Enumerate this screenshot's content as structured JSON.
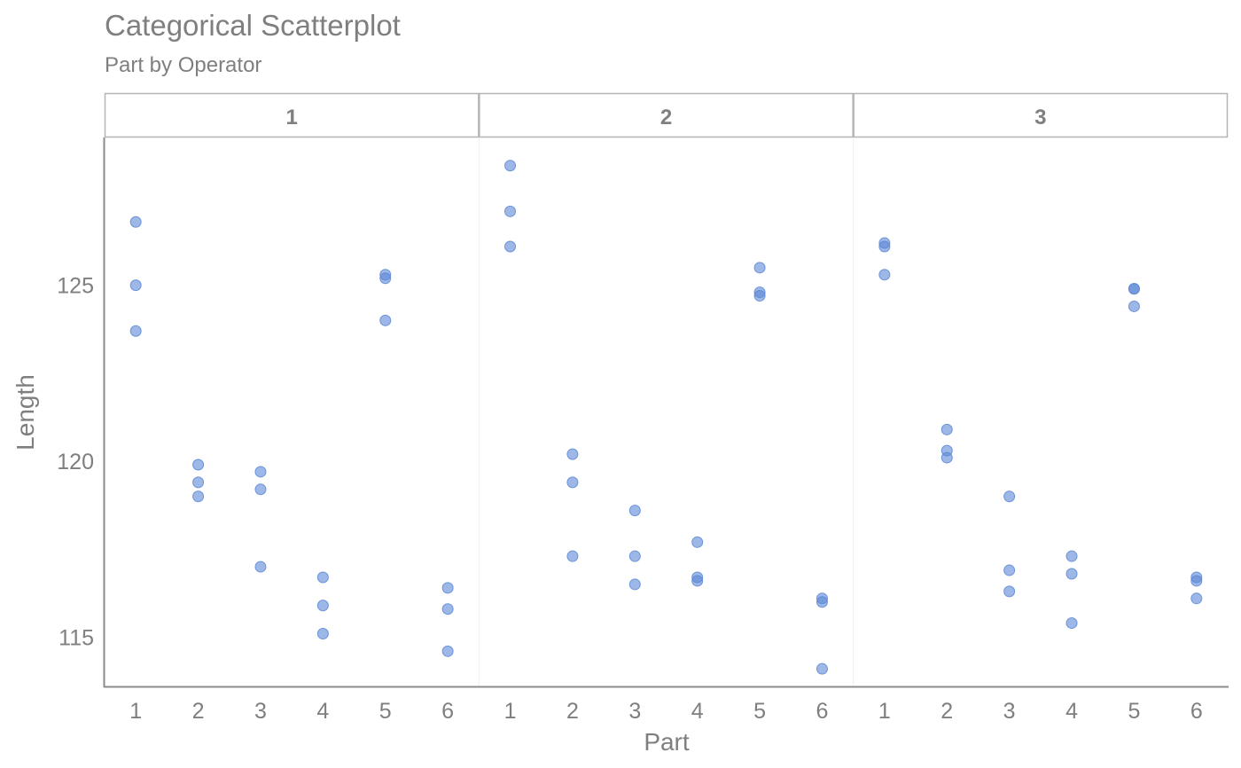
{
  "chart_data": {
    "type": "scatter",
    "title": "Categorical Scatterplot",
    "subtitle": "Part by Operator",
    "xlabel": "Part",
    "ylabel": "Length",
    "ylim": [
      113.6,
      129.2
    ],
    "yticks": [
      115,
      120,
      125
    ],
    "categories": [
      "1",
      "2",
      "3",
      "4",
      "5",
      "6"
    ],
    "grid": false,
    "point_color": "#5b87d6",
    "panels": [
      {
        "label": "1",
        "points": [
          {
            "x": "1",
            "y": 126.8
          },
          {
            "x": "1",
            "y": 125.0
          },
          {
            "x": "1",
            "y": 123.7
          },
          {
            "x": "2",
            "y": 119.9
          },
          {
            "x": "2",
            "y": 119.4
          },
          {
            "x": "2",
            "y": 119.0
          },
          {
            "x": "3",
            "y": 119.7
          },
          {
            "x": "3",
            "y": 119.2
          },
          {
            "x": "3",
            "y": 117.0
          },
          {
            "x": "4",
            "y": 116.7
          },
          {
            "x": "4",
            "y": 115.9
          },
          {
            "x": "4",
            "y": 115.1
          },
          {
            "x": "5",
            "y": 125.3
          },
          {
            "x": "5",
            "y": 125.2
          },
          {
            "x": "5",
            "y": 124.0
          },
          {
            "x": "6",
            "y": 116.4
          },
          {
            "x": "6",
            "y": 115.8
          },
          {
            "x": "6",
            "y": 114.6
          }
        ]
      },
      {
        "label": "2",
        "points": [
          {
            "x": "1",
            "y": 128.4
          },
          {
            "x": "1",
            "y": 127.1
          },
          {
            "x": "1",
            "y": 126.1
          },
          {
            "x": "2",
            "y": 120.2
          },
          {
            "x": "2",
            "y": 119.4
          },
          {
            "x": "2",
            "y": 117.3
          },
          {
            "x": "3",
            "y": 118.6
          },
          {
            "x": "3",
            "y": 117.3
          },
          {
            "x": "3",
            "y": 116.5
          },
          {
            "x": "4",
            "y": 117.7
          },
          {
            "x": "4",
            "y": 116.7
          },
          {
            "x": "4",
            "y": 116.6
          },
          {
            "x": "5",
            "y": 125.5
          },
          {
            "x": "5",
            "y": 124.8
          },
          {
            "x": "5",
            "y": 124.7
          },
          {
            "x": "6",
            "y": 116.1
          },
          {
            "x": "6",
            "y": 116.0
          },
          {
            "x": "6",
            "y": 114.1
          }
        ]
      },
      {
        "label": "3",
        "points": [
          {
            "x": "1",
            "y": 126.2
          },
          {
            "x": "1",
            "y": 126.1
          },
          {
            "x": "1",
            "y": 125.3
          },
          {
            "x": "2",
            "y": 120.9
          },
          {
            "x": "2",
            "y": 120.3
          },
          {
            "x": "2",
            "y": 120.1
          },
          {
            "x": "3",
            "y": 119.0
          },
          {
            "x": "3",
            "y": 116.9
          },
          {
            "x": "3",
            "y": 116.3
          },
          {
            "x": "4",
            "y": 117.3
          },
          {
            "x": "4",
            "y": 116.8
          },
          {
            "x": "4",
            "y": 115.4
          },
          {
            "x": "5",
            "y": 124.9
          },
          {
            "x": "5",
            "y": 124.9
          },
          {
            "x": "5",
            "y": 124.4
          },
          {
            "x": "6",
            "y": 116.7
          },
          {
            "x": "6",
            "y": 116.6
          },
          {
            "x": "6",
            "y": 116.1
          }
        ]
      }
    ]
  }
}
